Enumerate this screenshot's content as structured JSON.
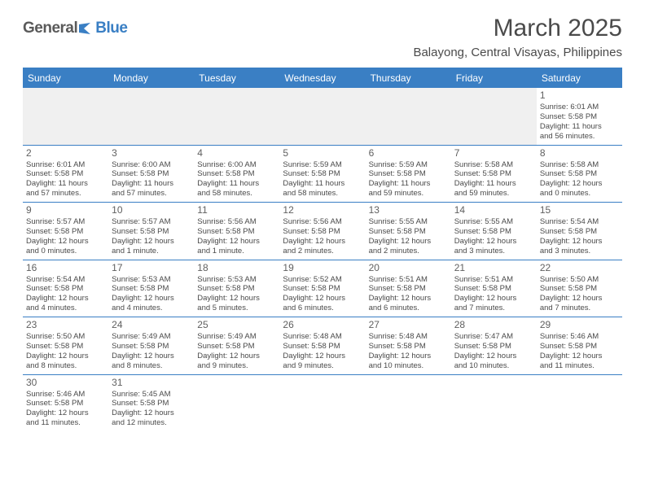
{
  "brand": {
    "part1": "General",
    "part2": "Blue"
  },
  "title": "March 2025",
  "location": "Balayong, Central Visayas, Philippines",
  "colors": {
    "accent": "#3a7fc4",
    "header_text": "#ffffff",
    "body_text": "#4a4a4a",
    "empty_bg": "#f0f0f0",
    "background": "#ffffff"
  },
  "dayNames": [
    "Sunday",
    "Monday",
    "Tuesday",
    "Wednesday",
    "Thursday",
    "Friday",
    "Saturday"
  ],
  "weeks": [
    [
      {
        "empty": true
      },
      {
        "empty": true
      },
      {
        "empty": true
      },
      {
        "empty": true
      },
      {
        "empty": true
      },
      {
        "empty": true
      },
      {
        "day": "1",
        "sunrise": "Sunrise: 6:01 AM",
        "sunset": "Sunset: 5:58 PM",
        "daylight1": "Daylight: 11 hours",
        "daylight2": "and 56 minutes."
      }
    ],
    [
      {
        "day": "2",
        "sunrise": "Sunrise: 6:01 AM",
        "sunset": "Sunset: 5:58 PM",
        "daylight1": "Daylight: 11 hours",
        "daylight2": "and 57 minutes."
      },
      {
        "day": "3",
        "sunrise": "Sunrise: 6:00 AM",
        "sunset": "Sunset: 5:58 PM",
        "daylight1": "Daylight: 11 hours",
        "daylight2": "and 57 minutes."
      },
      {
        "day": "4",
        "sunrise": "Sunrise: 6:00 AM",
        "sunset": "Sunset: 5:58 PM",
        "daylight1": "Daylight: 11 hours",
        "daylight2": "and 58 minutes."
      },
      {
        "day": "5",
        "sunrise": "Sunrise: 5:59 AM",
        "sunset": "Sunset: 5:58 PM",
        "daylight1": "Daylight: 11 hours",
        "daylight2": "and 58 minutes."
      },
      {
        "day": "6",
        "sunrise": "Sunrise: 5:59 AM",
        "sunset": "Sunset: 5:58 PM",
        "daylight1": "Daylight: 11 hours",
        "daylight2": "and 59 minutes."
      },
      {
        "day": "7",
        "sunrise": "Sunrise: 5:58 AM",
        "sunset": "Sunset: 5:58 PM",
        "daylight1": "Daylight: 11 hours",
        "daylight2": "and 59 minutes."
      },
      {
        "day": "8",
        "sunrise": "Sunrise: 5:58 AM",
        "sunset": "Sunset: 5:58 PM",
        "daylight1": "Daylight: 12 hours",
        "daylight2": "and 0 minutes."
      }
    ],
    [
      {
        "day": "9",
        "sunrise": "Sunrise: 5:57 AM",
        "sunset": "Sunset: 5:58 PM",
        "daylight1": "Daylight: 12 hours",
        "daylight2": "and 0 minutes."
      },
      {
        "day": "10",
        "sunrise": "Sunrise: 5:57 AM",
        "sunset": "Sunset: 5:58 PM",
        "daylight1": "Daylight: 12 hours",
        "daylight2": "and 1 minute."
      },
      {
        "day": "11",
        "sunrise": "Sunrise: 5:56 AM",
        "sunset": "Sunset: 5:58 PM",
        "daylight1": "Daylight: 12 hours",
        "daylight2": "and 1 minute."
      },
      {
        "day": "12",
        "sunrise": "Sunrise: 5:56 AM",
        "sunset": "Sunset: 5:58 PM",
        "daylight1": "Daylight: 12 hours",
        "daylight2": "and 2 minutes."
      },
      {
        "day": "13",
        "sunrise": "Sunrise: 5:55 AM",
        "sunset": "Sunset: 5:58 PM",
        "daylight1": "Daylight: 12 hours",
        "daylight2": "and 2 minutes."
      },
      {
        "day": "14",
        "sunrise": "Sunrise: 5:55 AM",
        "sunset": "Sunset: 5:58 PM",
        "daylight1": "Daylight: 12 hours",
        "daylight2": "and 3 minutes."
      },
      {
        "day": "15",
        "sunrise": "Sunrise: 5:54 AM",
        "sunset": "Sunset: 5:58 PM",
        "daylight1": "Daylight: 12 hours",
        "daylight2": "and 3 minutes."
      }
    ],
    [
      {
        "day": "16",
        "sunrise": "Sunrise: 5:54 AM",
        "sunset": "Sunset: 5:58 PM",
        "daylight1": "Daylight: 12 hours",
        "daylight2": "and 4 minutes."
      },
      {
        "day": "17",
        "sunrise": "Sunrise: 5:53 AM",
        "sunset": "Sunset: 5:58 PM",
        "daylight1": "Daylight: 12 hours",
        "daylight2": "and 4 minutes."
      },
      {
        "day": "18",
        "sunrise": "Sunrise: 5:53 AM",
        "sunset": "Sunset: 5:58 PM",
        "daylight1": "Daylight: 12 hours",
        "daylight2": "and 5 minutes."
      },
      {
        "day": "19",
        "sunrise": "Sunrise: 5:52 AM",
        "sunset": "Sunset: 5:58 PM",
        "daylight1": "Daylight: 12 hours",
        "daylight2": "and 6 minutes."
      },
      {
        "day": "20",
        "sunrise": "Sunrise: 5:51 AM",
        "sunset": "Sunset: 5:58 PM",
        "daylight1": "Daylight: 12 hours",
        "daylight2": "and 6 minutes."
      },
      {
        "day": "21",
        "sunrise": "Sunrise: 5:51 AM",
        "sunset": "Sunset: 5:58 PM",
        "daylight1": "Daylight: 12 hours",
        "daylight2": "and 7 minutes."
      },
      {
        "day": "22",
        "sunrise": "Sunrise: 5:50 AM",
        "sunset": "Sunset: 5:58 PM",
        "daylight1": "Daylight: 12 hours",
        "daylight2": "and 7 minutes."
      }
    ],
    [
      {
        "day": "23",
        "sunrise": "Sunrise: 5:50 AM",
        "sunset": "Sunset: 5:58 PM",
        "daylight1": "Daylight: 12 hours",
        "daylight2": "and 8 minutes."
      },
      {
        "day": "24",
        "sunrise": "Sunrise: 5:49 AM",
        "sunset": "Sunset: 5:58 PM",
        "daylight1": "Daylight: 12 hours",
        "daylight2": "and 8 minutes."
      },
      {
        "day": "25",
        "sunrise": "Sunrise: 5:49 AM",
        "sunset": "Sunset: 5:58 PM",
        "daylight1": "Daylight: 12 hours",
        "daylight2": "and 9 minutes."
      },
      {
        "day": "26",
        "sunrise": "Sunrise: 5:48 AM",
        "sunset": "Sunset: 5:58 PM",
        "daylight1": "Daylight: 12 hours",
        "daylight2": "and 9 minutes."
      },
      {
        "day": "27",
        "sunrise": "Sunrise: 5:48 AM",
        "sunset": "Sunset: 5:58 PM",
        "daylight1": "Daylight: 12 hours",
        "daylight2": "and 10 minutes."
      },
      {
        "day": "28",
        "sunrise": "Sunrise: 5:47 AM",
        "sunset": "Sunset: 5:58 PM",
        "daylight1": "Daylight: 12 hours",
        "daylight2": "and 10 minutes."
      },
      {
        "day": "29",
        "sunrise": "Sunrise: 5:46 AM",
        "sunset": "Sunset: 5:58 PM",
        "daylight1": "Daylight: 12 hours",
        "daylight2": "and 11 minutes."
      }
    ],
    [
      {
        "day": "30",
        "sunrise": "Sunrise: 5:46 AM",
        "sunset": "Sunset: 5:58 PM",
        "daylight1": "Daylight: 12 hours",
        "daylight2": "and 11 minutes."
      },
      {
        "day": "31",
        "sunrise": "Sunrise: 5:45 AM",
        "sunset": "Sunset: 5:58 PM",
        "daylight1": "Daylight: 12 hours",
        "daylight2": "and 12 minutes."
      },
      {
        "empty": true,
        "blank": true
      },
      {
        "empty": true,
        "blank": true
      },
      {
        "empty": true,
        "blank": true
      },
      {
        "empty": true,
        "blank": true
      },
      {
        "empty": true,
        "blank": true
      }
    ]
  ]
}
